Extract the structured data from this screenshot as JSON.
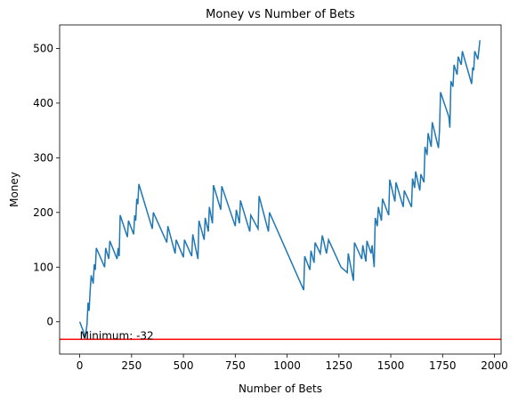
{
  "chart_data": {
    "type": "line",
    "title": "Money vs Number of Bets",
    "x_label": "Number of Bets",
    "y_label": "Money",
    "color": "#1f77b4",
    "x": [
      0,
      20,
      25,
      35,
      40,
      45,
      50,
      55,
      65,
      70,
      75,
      80,
      120,
      125,
      140,
      145,
      180,
      185,
      190,
      195,
      230,
      235,
      260,
      265,
      270,
      275,
      280,
      285,
      350,
      355,
      420,
      425,
      460,
      465,
      500,
      505,
      540,
      545,
      570,
      575,
      600,
      605,
      620,
      625,
      640,
      645,
      680,
      685,
      750,
      755,
      770,
      775,
      820,
      825,
      860,
      865,
      910,
      915,
      1080,
      1085,
      1110,
      1115,
      1130,
      1135,
      1160,
      1170,
      1190,
      1200,
      1260,
      1290,
      1295,
      1320,
      1325,
      1360,
      1365,
      1380,
      1385,
      1405,
      1410,
      1420,
      1425,
      1435,
      1440,
      1455,
      1460,
      1490,
      1495,
      1520,
      1525,
      1560,
      1565,
      1600,
      1605,
      1615,
      1620,
      1640,
      1645,
      1660,
      1665,
      1675,
      1680,
      1695,
      1700,
      1730,
      1735,
      1740,
      1780,
      1785,
      1790,
      1800,
      1805,
      1820,
      1825,
      1840,
      1845,
      1890,
      1895,
      1900,
      1905,
      1920,
      1930
    ],
    "values": [
      0,
      -20,
      -32,
      -5,
      35,
      20,
      55,
      85,
      70,
      105,
      95,
      135,
      100,
      135,
      115,
      148,
      115,
      135,
      120,
      195,
      155,
      185,
      160,
      195,
      185,
      225,
      215,
      252,
      170,
      200,
      145,
      175,
      125,
      150,
      118,
      150,
      120,
      160,
      115,
      185,
      150,
      190,
      165,
      210,
      180,
      250,
      205,
      248,
      175,
      205,
      180,
      222,
      165,
      195,
      170,
      230,
      165,
      200,
      58,
      120,
      95,
      130,
      108,
      145,
      125,
      158,
      125,
      150,
      100,
      90,
      125,
      75,
      145,
      115,
      140,
      110,
      148,
      125,
      140,
      100,
      190,
      175,
      210,
      185,
      225,
      195,
      260,
      220,
      255,
      210,
      240,
      210,
      262,
      245,
      275,
      240,
      270,
      255,
      320,
      305,
      345,
      320,
      365,
      318,
      350,
      420,
      375,
      355,
      440,
      430,
      470,
      452,
      485,
      470,
      495,
      435,
      465,
      460,
      495,
      480,
      515
    ],
    "xlim": [
      -97,
      2032
    ],
    "ylim": [
      -59,
      543
    ],
    "xticks": [
      0,
      250,
      500,
      750,
      1000,
      1250,
      1500,
      1750,
      2000
    ],
    "yticks": [
      0,
      100,
      200,
      300,
      400,
      500
    ],
    "hline": {
      "y": -32,
      "color": "#ff0000"
    },
    "annotation": {
      "text": "Minimum: -32",
      "x": 0,
      "y": -32
    }
  }
}
